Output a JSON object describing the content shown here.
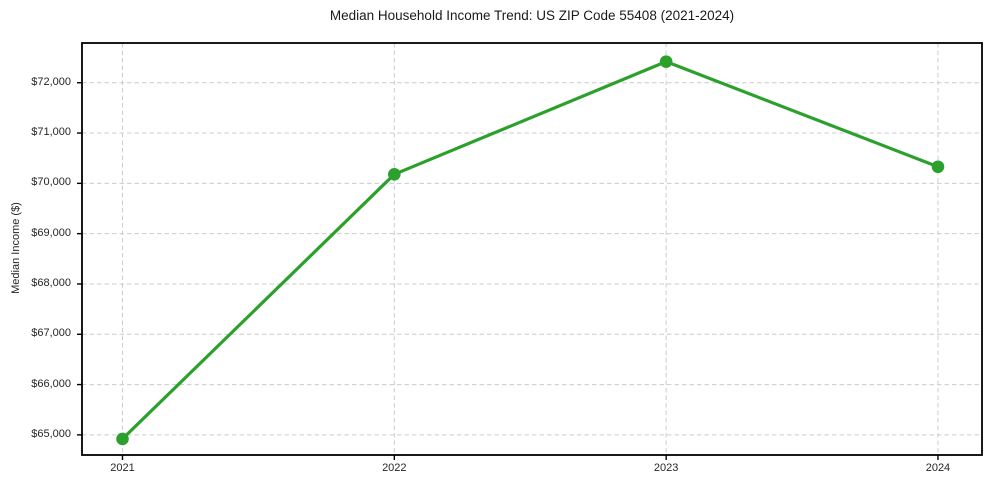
{
  "chart_data": {
    "type": "line",
    "title": "Median Household Income Trend: US ZIP Code 55408 (2021-2024)",
    "xlabel": "",
    "ylabel": "Median Income ($)",
    "x": [
      2021,
      2022,
      2023,
      2024
    ],
    "series": [
      {
        "name": "Median Household Income",
        "values": [
          64920,
          70180,
          72420,
          70330
        ],
        "color": "#2ca02c",
        "marker": "circle"
      }
    ],
    "xticks": {
      "values": [
        2021,
        2022,
        2023,
        2024
      ],
      "labels": [
        "2021",
        "2022",
        "2023",
        "2024"
      ]
    },
    "yticks": {
      "values": [
        65000,
        66000,
        67000,
        68000,
        69000,
        70000,
        71000,
        72000
      ],
      "labels": [
        "$65,000",
        "$66,000",
        "$67,000",
        "$68,000",
        "$69,000",
        "$70,000",
        "$71,000",
        "$72,000"
      ]
    },
    "xlim": [
      2020.851,
      2024.162
    ],
    "ylim": [
      64600,
      72790
    ],
    "grid": true,
    "grid_style": "dashed",
    "legend": null,
    "colors": {
      "line": "#2ca02c",
      "grid": "#cccccc",
      "spine": "#000000",
      "text": "#262626",
      "title_text": "#1a1a1a",
      "background": "#ffffff"
    }
  }
}
